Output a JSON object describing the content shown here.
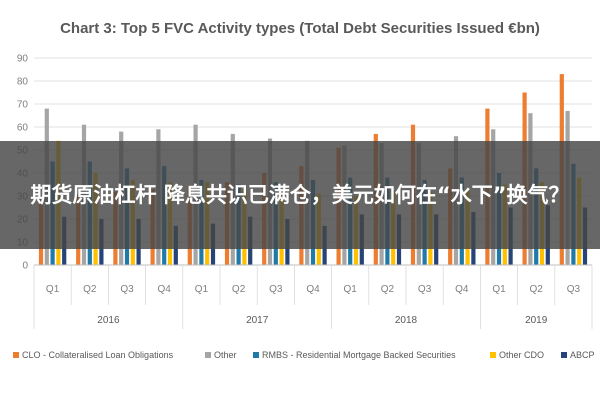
{
  "chart_data": {
    "type": "bar",
    "title": "Chart 3: Top 5 FVC Activity types (Total Debt Securities Issued €bn)",
    "xlabel": "",
    "ylabel": "",
    "ylim": [
      0,
      90
    ],
    "yticks": [
      0,
      10,
      20,
      30,
      40,
      50,
      60,
      70,
      80,
      90
    ],
    "grid": true,
    "legend_position": "bottom",
    "categories": [
      "Q1",
      "Q2",
      "Q3",
      "Q4",
      "Q1",
      "Q2",
      "Q3",
      "Q4",
      "Q1",
      "Q2",
      "Q3",
      "Q4",
      "Q1",
      "Q2",
      "Q3"
    ],
    "groups": [
      {
        "label": "2016",
        "count": 4
      },
      {
        "label": "2017",
        "count": 4
      },
      {
        "label": "2018",
        "count": 4
      },
      {
        "label": "2019",
        "count": 3
      }
    ],
    "series": [
      {
        "name": "CLO - Collateralised Loan Obligations",
        "color": "#ed7d31",
        "values": [
          29,
          31,
          32,
          33,
          34,
          36,
          40,
          43,
          51,
          57,
          61,
          42,
          68,
          75,
          83
        ]
      },
      {
        "name": "Other",
        "color": "#a5a5a5",
        "values": [
          68,
          61,
          58,
          59,
          61,
          57,
          55,
          54,
          52,
          53,
          53,
          56,
          59,
          66,
          67
        ]
      },
      {
        "name": "RMBS - Residential Mortgage Backed Securities",
        "color": "#1f7aa8",
        "values": [
          45,
          45,
          42,
          43,
          37,
          35,
          36,
          37,
          38,
          38,
          37,
          38,
          40,
          42,
          44
        ]
      },
      {
        "name": "Other CDO",
        "color": "#ffc000",
        "values": [
          54,
          40,
          37,
          36,
          36,
          33,
          32,
          31,
          30,
          32,
          32,
          33,
          35,
          36,
          38
        ]
      },
      {
        "name": "ABCP",
        "color": "#264478",
        "values": [
          21,
          20,
          20,
          17,
          18,
          21,
          20,
          17,
          22,
          22,
          22,
          23,
          25,
          26,
          25
        ]
      }
    ]
  },
  "overlay": {
    "headline": "期货原油杠杆 降息共识已满仓，美元如何在“水下”换气？"
  }
}
